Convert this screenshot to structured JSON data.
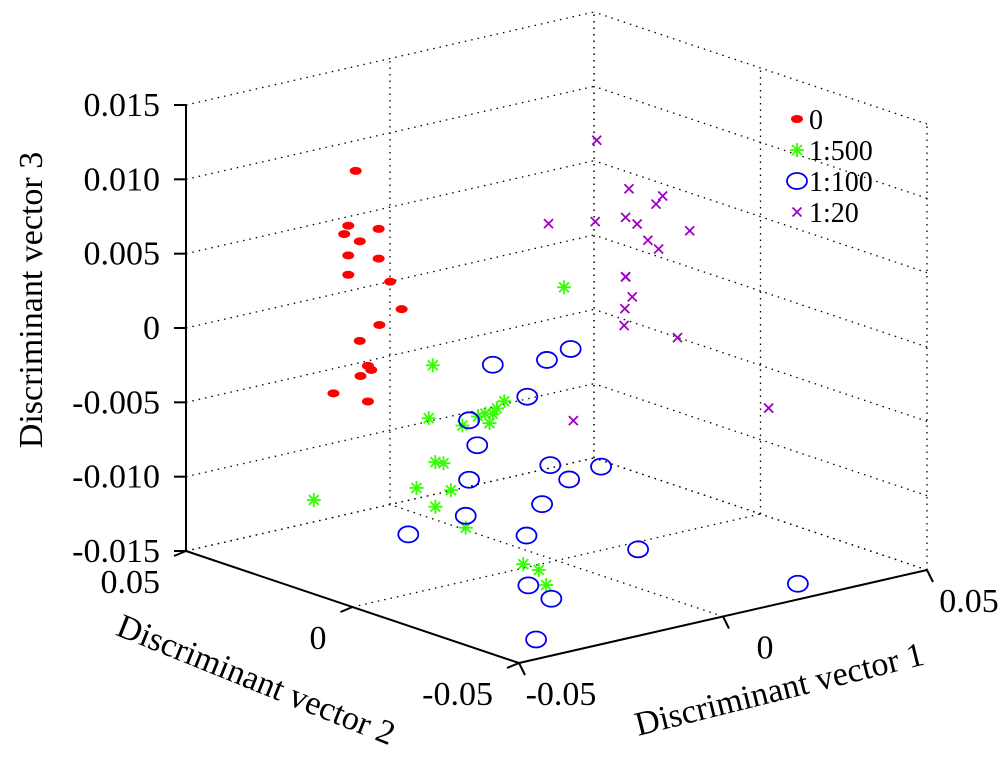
{
  "chart_data": {
    "type": "scatter3d",
    "title": "",
    "xlabel": "Discriminant vector 1",
    "ylabel": "Discriminant vector 2",
    "zlabel": "Discriminant vector 3",
    "xlim": [
      -0.05,
      0.05
    ],
    "ylim": [
      -0.05,
      0.05
    ],
    "zlim": [
      -0.015,
      0.015
    ],
    "x_ticks": [
      "-0.05",
      "0",
      "0.05"
    ],
    "y_ticks": [
      "-0.05",
      "0",
      "0.05"
    ],
    "z_ticks": [
      "-0.015",
      "-0.010",
      "-0.005",
      "0",
      "0.005",
      "0.010",
      "0.015"
    ],
    "grid": true,
    "legend_position": "top-right",
    "series": [
      {
        "name": "0",
        "marker": "dot",
        "color": "#ff0000",
        "points": [
          [
            -0.028,
            0.026,
            0.011
          ],
          [
            -0.029,
            0.027,
            0.0073
          ],
          [
            -0.024,
            0.024,
            0.007
          ],
          [
            -0.03,
            0.027,
            0.0068
          ],
          [
            -0.027,
            0.026,
            0.0062
          ],
          [
            -0.029,
            0.027,
            0.0053
          ],
          [
            -0.024,
            0.024,
            0.005
          ],
          [
            -0.029,
            0.027,
            0.004
          ],
          [
            -0.022,
            0.023,
            0.0034
          ],
          [
            -0.02,
            0.022,
            0.0015
          ],
          [
            -0.023,
            0.025,
            0.0004
          ],
          [
            -0.027,
            0.026,
            -0.0005
          ],
          [
            -0.025,
            0.026,
            -0.0023
          ],
          [
            -0.025,
            0.025,
            -0.0025
          ],
          [
            -0.026,
            0.027,
            -0.003
          ],
          [
            -0.031,
            0.029,
            -0.004
          ],
          [
            -0.025,
            0.026,
            -0.0047
          ]
        ]
      },
      {
        "name": "1:500",
        "marker": "asterisk",
        "color": "#33ff00",
        "points": [
          [
            0.01,
            0.01,
            0.002
          ],
          [
            -0.014,
            0.02,
            -0.0025
          ],
          [
            -0.003,
            0.012,
            -0.005
          ],
          [
            -0.004,
            0.013,
            -0.0055
          ],
          [
            -0.005,
            0.013,
            -0.0058
          ],
          [
            -0.006,
            0.014,
            -0.0058
          ],
          [
            -0.007,
            0.015,
            -0.006
          ],
          [
            -0.005,
            0.014,
            -0.0065
          ],
          [
            -0.01,
            0.016,
            -0.0065
          ],
          [
            -0.015,
            0.02,
            -0.006
          ],
          [
            -0.015,
            0.018,
            -0.0088
          ],
          [
            -0.013,
            0.018,
            -0.009
          ],
          [
            -0.018,
            0.02,
            -0.0105
          ],
          [
            -0.012,
            0.017,
            -0.0108
          ],
          [
            -0.035,
            0.03,
            -0.011
          ],
          [
            -0.015,
            0.018,
            -0.0118
          ],
          [
            -0.01,
            0.015,
            -0.0133
          ],
          [
            0.0,
            0.01,
            -0.016
          ],
          [
            0.003,
            0.009,
            -0.0165
          ],
          [
            0.004,
            0.008,
            -0.0175
          ]
        ]
      },
      {
        "name": "1:100",
        "marker": "circle",
        "color": "#0000ee",
        "points": [
          [
            -0.005,
            0.013,
            -0.0025
          ],
          [
            0.005,
            0.009,
            -0.0025
          ],
          [
            0.01,
            0.008,
            -0.002
          ],
          [
            0.001,
            0.01,
            -0.0048
          ],
          [
            -0.01,
            0.014,
            -0.006
          ],
          [
            -0.008,
            0.014,
            -0.0078
          ],
          [
            0.005,
            0.008,
            -0.0095
          ],
          [
            0.015,
            0.005,
            -0.01
          ],
          [
            0.008,
            0.006,
            -0.0105
          ],
          [
            -0.01,
            0.014,
            -0.01
          ],
          [
            0.003,
            0.008,
            -0.012
          ],
          [
            -0.01,
            0.015,
            -0.0125
          ],
          [
            -0.02,
            0.02,
            -0.0135
          ],
          [
            0.0,
            0.009,
            -0.014
          ],
          [
            0.02,
            0.0,
            -0.0155
          ],
          [
            -0.002,
            0.006,
            -0.017
          ],
          [
            0.002,
            0.004,
            -0.018
          ],
          [
            -0.005,
            0.0,
            -0.02
          ],
          [
            0.051,
            -0.01,
            -0.019
          ]
        ]
      },
      {
        "name": "1:20",
        "marker": "x",
        "color": "#a000c8",
        "points": [
          [
            0.027,
            0.021,
            0.01
          ],
          [
            0.03,
            0.015,
            0.007
          ],
          [
            0.035,
            0.011,
            0.0065
          ],
          [
            0.035,
            0.013,
            0.0058
          ],
          [
            0.03,
            0.016,
            0.005
          ],
          [
            0.016,
            0.022,
            0.005
          ],
          [
            0.025,
            0.019,
            0.0048
          ],
          [
            0.032,
            0.015,
            0.0045
          ],
          [
            0.04,
            0.009,
            0.004
          ],
          [
            0.033,
            0.013,
            0.0035
          ],
          [
            0.034,
            0.011,
            0.003
          ],
          [
            0.03,
            0.016,
            0.001
          ],
          [
            0.03,
            0.016,
            0.001
          ],
          [
            0.03,
            0.014,
            -0.0002
          ],
          [
            0.029,
            0.015,
            -0.001
          ],
          [
            0.028,
            0.014,
            -0.002
          ],
          [
            0.037,
            0.009,
            -0.003
          ],
          [
            0.052,
            0.0,
            -0.008
          ],
          [
            0.018,
            0.017,
            -0.008
          ]
        ]
      }
    ]
  }
}
